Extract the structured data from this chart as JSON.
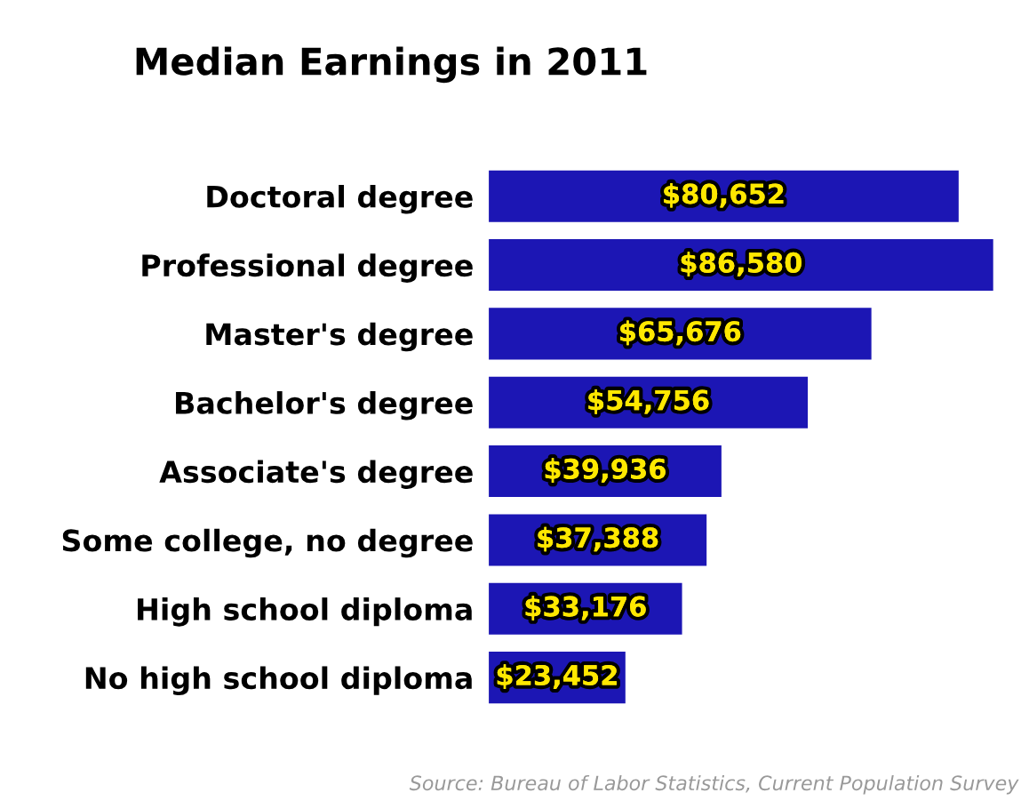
{
  "chart_data": {
    "type": "bar",
    "orientation": "horizontal",
    "title": "Median Earnings in 2011",
    "categories": [
      "Doctoral degree",
      "Professional degree",
      "Master's degree",
      "Bachelor's degree",
      "Associate's degree",
      "Some college, no degree",
      "High school diploma",
      "No high school diploma"
    ],
    "values": [
      80652,
      86580,
      65676,
      54756,
      39936,
      37388,
      33176,
      23452
    ],
    "value_labels": [
      "$80,652",
      "$86,580",
      "$65,676",
      "$54,756",
      "$39,936",
      "$37,388",
      "$33,176",
      "$23,452"
    ],
    "color": "#1c16b4",
    "annotations": [
      "Source: Bureau of Labor Statistics, Current Population Survey"
    ]
  }
}
